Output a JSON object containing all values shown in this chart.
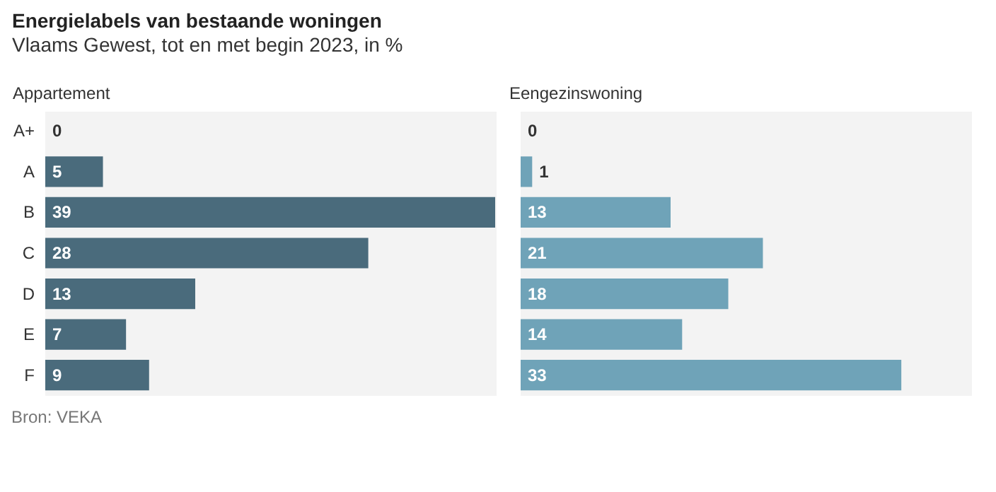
{
  "chart_data": [
    {
      "type": "bar",
      "title": "Energielabels van bestaande woningen",
      "subtitle": "Vlaams Gewest, tot en met begin 2023, in %",
      "annotations": [
        "Bron: VEKA"
      ],
      "orientation": "horizontal",
      "categories": [
        "A+",
        "A",
        "B",
        "C",
        "D",
        "E",
        "F"
      ],
      "series": [
        {
          "name": "Appartement",
          "color": "#4a6b7c",
          "values": [
            0,
            5,
            39,
            28,
            13,
            7,
            9
          ]
        }
      ],
      "xlim": [
        0,
        39
      ],
      "data_labels": true,
      "tick_labels": "y"
    },
    {
      "type": "bar",
      "orientation": "horizontal",
      "categories": [
        null,
        null,
        null,
        null,
        null,
        null,
        null
      ],
      "series": [
        {
          "name": "Eengezinswoning",
          "color": "#6fa3b8",
          "values": [
            0,
            1,
            13,
            21,
            18,
            14,
            33
          ]
        }
      ],
      "xlim": [
        0,
        39
      ],
      "data_labels": true
    }
  ]
}
